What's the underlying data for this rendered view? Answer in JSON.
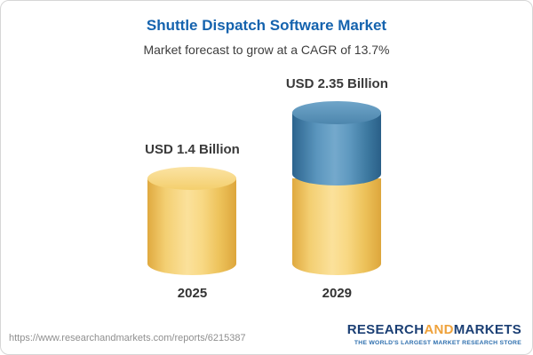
{
  "header": {
    "title": "Shuttle Dispatch Software Market",
    "subtitle": "Market forecast to grow at a CAGR of 13.7%"
  },
  "chart_data": {
    "type": "bar",
    "variant": "3d-cylinder",
    "categories": [
      "2025",
      "2029"
    ],
    "values": [
      1.4,
      2.35
    ],
    "value_labels": [
      "USD 1.4 Billion",
      "USD 2.35 Billion"
    ],
    "unit": "USD Billion",
    "title": "Shuttle Dispatch Software Market",
    "subtitle": "Market forecast to grow at a CAGR of 13.7%",
    "cagr_percent": 13.7,
    "ylim": [
      0,
      2.5
    ],
    "grid": false,
    "legend": false,
    "notes": "2029 bar shows base value (1.4) in yellow with growth portion (0.95) stacked in blue on top",
    "colors": {
      "title_blue": "#1563ae",
      "bar_yellow": "#f3cf72",
      "bar_blue": "#4a86ae"
    }
  },
  "footer": {
    "url": "https://www.researchandmarkets.com/reports/6215387",
    "logo": {
      "part_research": "RESEARCH",
      "part_and": "AND",
      "part_markets": "MARKETS",
      "tagline": "THE WORLD'S LARGEST MARKET RESEARCH STORE"
    }
  }
}
